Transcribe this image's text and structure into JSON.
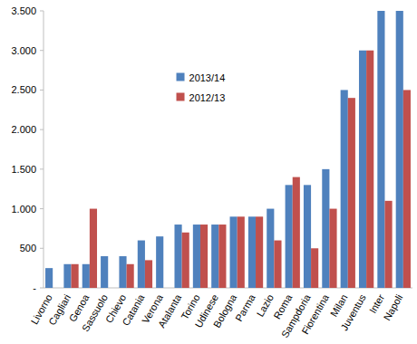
{
  "chart_data": {
    "type": "bar",
    "categories": [
      "Livorno",
      "Cagliari",
      "Genoa",
      "Sassuolo",
      "Chievo",
      "Catania",
      "Verona",
      "Atalanta",
      "Torino",
      "Udinese",
      "Bologna",
      "Parma",
      "Lazio",
      "Roma",
      "Sampdoria",
      "Fiorentina",
      "Milan",
      "Juventus",
      "Inter",
      "Napoli"
    ],
    "series": [
      {
        "name": "2013/14",
        "color": "#4f81bd",
        "values": [
          250,
          300,
          300,
          400,
          400,
          600,
          650,
          800,
          800,
          800,
          900,
          900,
          1000,
          1300,
          1300,
          1500,
          2500,
          3000,
          3500,
          3500
        ]
      },
      {
        "name": "2012/13",
        "color": "#c0504d",
        "values": [
          null,
          300,
          1000,
          null,
          300,
          350,
          null,
          700,
          800,
          800,
          900,
          900,
          600,
          1400,
          500,
          1000,
          2400,
          3000,
          1100,
          2500
        ]
      }
    ],
    "ylim": [
      0,
      3500
    ],
    "yticks": [
      {
        "value": 0,
        "label": "-"
      },
      500,
      {
        "value": 1000,
        "label": "1.000"
      },
      {
        "value": 1500,
        "label": "1.500"
      },
      {
        "value": 2000,
        "label": "2.000"
      },
      {
        "value": 2500,
        "label": "2.500"
      },
      {
        "value": 3000,
        "label": "3.000"
      },
      {
        "value": 3500,
        "label": "3.500"
      }
    ],
    "grid": false,
    "legend": "upper center"
  }
}
